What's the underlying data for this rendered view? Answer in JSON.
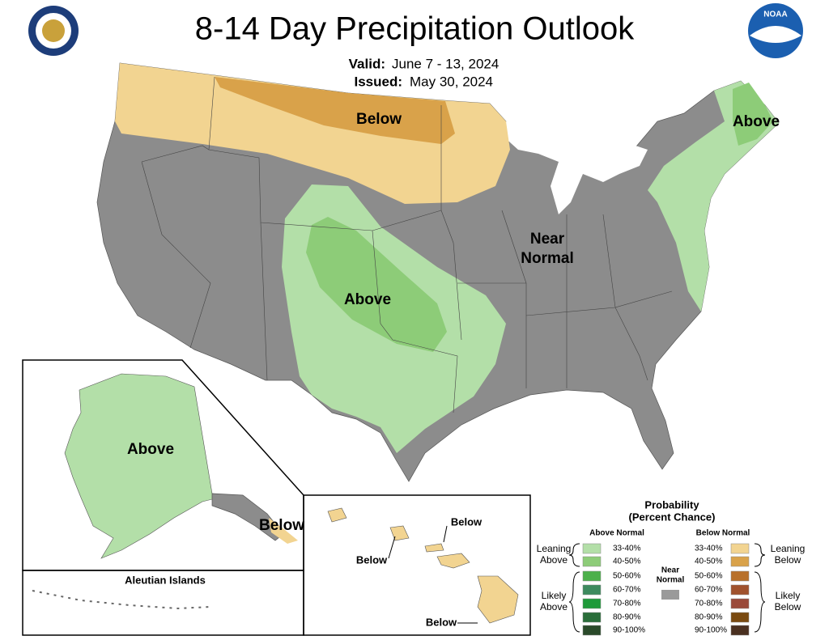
{
  "header": {
    "title": "8-14 Day Precipitation Outlook",
    "valid_label": "Valid:",
    "valid_dates": "June 7 - 13, 2024",
    "issued_label": "Issued:",
    "issued_date": "May 30, 2024"
  },
  "logos": {
    "noaa": "NOAA"
  },
  "map_labels": {
    "conus_below": "Below",
    "conus_above_northeast": "Above",
    "conus_near_normal": [
      "Near",
      "Normal"
    ],
    "conus_above_central": "Above",
    "alaska_above": "Above",
    "alaska_below": "Below",
    "aleutian_islands": "Aleutian Islands",
    "hawaii_below_north": "Below",
    "hawaii_below_west": "Below",
    "hawaii_below_south": "Below"
  },
  "legend": {
    "title": [
      "Probability",
      "(Percent Chance)"
    ],
    "above_normal_heading": "Above Normal",
    "below_normal_heading": "Below Normal",
    "leaning_above": [
      "Leaning",
      "Above"
    ],
    "likely_above": [
      "Likely",
      "Above"
    ],
    "near_normal": [
      "Near",
      "Normal"
    ],
    "leaning_below": [
      "Leaning",
      "Below"
    ],
    "likely_below": [
      "Likely",
      "Below"
    ],
    "above_normal": [
      {
        "range": "33-40%",
        "color": "#b3dfa8"
      },
      {
        "range": "40-50%",
        "color": "#8dcc78"
      },
      {
        "range": "50-60%",
        "color": "#4cb04a"
      },
      {
        "range": "60-70%",
        "color": "#3d8a5e"
      },
      {
        "range": "70-80%",
        "color": "#1f9a3a"
      },
      {
        "range": "80-90%",
        "color": "#2a6e3a"
      },
      {
        "range": "90-100%",
        "color": "#2a4a2a"
      }
    ],
    "below_normal": [
      {
        "range": "33-40%",
        "color": "#f2d491"
      },
      {
        "range": "40-50%",
        "color": "#d9a24a"
      },
      {
        "range": "50-60%",
        "color": "#b8702a"
      },
      {
        "range": "60-70%",
        "color": "#a0522d"
      },
      {
        "range": "70-80%",
        "color": "#9a4a3a"
      },
      {
        "range": "80-90%",
        "color": "#7a4a10"
      },
      {
        "range": "90-100%",
        "color": "#4a3020"
      }
    ]
  }
}
